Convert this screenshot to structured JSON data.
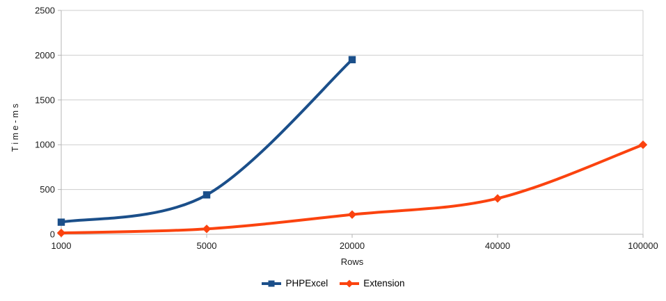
{
  "chart_data": {
    "type": "line",
    "title": "",
    "xlabel": "Rows",
    "ylabel": "Time-ms",
    "categories": [
      "1000",
      "5000",
      "20000",
      "40000",
      "100000"
    ],
    "y_ticks": [
      0,
      500,
      1000,
      1500,
      2000,
      2500
    ],
    "ylim": [
      0,
      2500
    ],
    "grid": true,
    "line_style": "smooth",
    "legend_position": "bottom",
    "series": [
      {
        "name": "PHPExcel",
        "color": "#1b4f8a",
        "marker": "square",
        "values": [
          135,
          440,
          1950,
          null,
          null
        ]
      },
      {
        "name": "Extension",
        "color": "#fb430f",
        "marker": "diamond",
        "values": [
          15,
          60,
          220,
          400,
          1000
        ]
      }
    ]
  },
  "colors": {
    "grid_line": "#cdcdcd",
    "axis_line": "#b5b5b5",
    "tick_text": "#1a1a1a",
    "background": "#ffffff"
  }
}
